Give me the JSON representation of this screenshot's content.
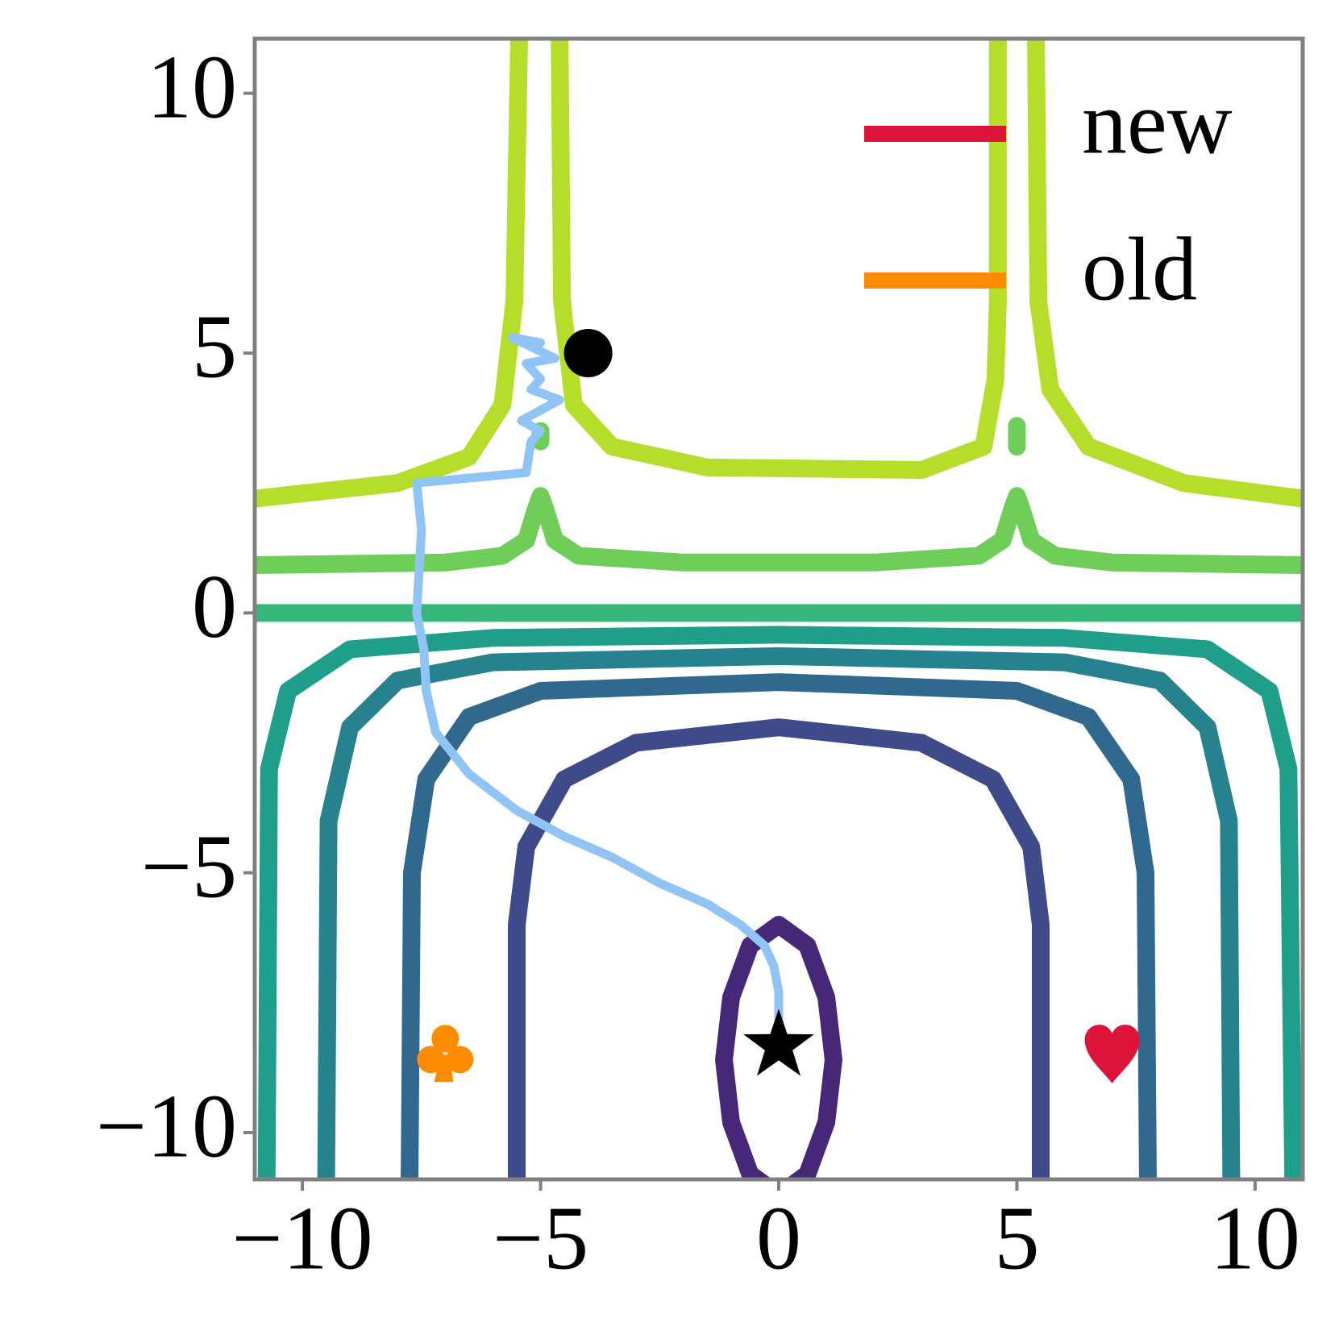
{
  "chart_data": {
    "type": "contour",
    "xlim": [
      -11,
      11
    ],
    "ylim": [
      -10.9,
      11.05
    ],
    "xticks": [
      {
        "value": -10,
        "label": "−10"
      },
      {
        "value": -5,
        "label": "−5"
      },
      0,
      5,
      10
    ],
    "yticks": [
      {
        "value": -10,
        "label": "−10"
      },
      {
        "value": -5,
        "label": "−5"
      },
      0,
      5,
      10
    ],
    "legend": "upper right",
    "series": [
      {
        "name": "new",
        "color": "#dc143c"
      },
      {
        "name": "old",
        "color": "#ff8c00"
      }
    ],
    "contours": [
      {
        "color": "#472878",
        "x": [
          0,
          0.6,
          1.0,
          1.15,
          1.0,
          0.6,
          0,
          -0.6,
          -1.0,
          -1.15,
          -1.0,
          -0.6,
          0
        ],
        "y": [
          -6.0,
          -6.4,
          -7.4,
          -8.6,
          -9.8,
          -10.8,
          -11.2,
          -10.8,
          -9.8,
          -8.6,
          -7.4,
          -6.4,
          -6.0
        ]
      },
      {
        "color": "#3e4a89",
        "x": [
          -5.5,
          -5.5,
          -5.3,
          -4.5,
          -3,
          0,
          3,
          4.5,
          5.3,
          5.5,
          5.5
        ],
        "y": [
          -10.9,
          -6,
          -4.5,
          -3.2,
          -2.5,
          -2.2,
          -2.5,
          -3.2,
          -4.5,
          -6,
          -10.9
        ]
      },
      {
        "color": "#31688e",
        "x": [
          -7.75,
          -7.7,
          -7.4,
          -6.5,
          -5,
          0,
          5,
          6.5,
          7.4,
          7.7,
          7.75
        ],
        "y": [
          -10.9,
          -5,
          -3.2,
          -2,
          -1.5,
          -1.33,
          -1.5,
          -2,
          -3.2,
          -5,
          -10.9
        ]
      },
      {
        "color": "#26828e",
        "x": [
          -9.5,
          -9.45,
          -9,
          -8,
          -6,
          0,
          6,
          8,
          9,
          9.45,
          9.5
        ],
        "y": [
          -10.9,
          -4,
          -2.2,
          -1.3,
          -0.95,
          -0.83,
          -0.95,
          -1.3,
          -2.2,
          -4,
          -10.9
        ]
      },
      {
        "color": "#1f9e89",
        "x": [
          -10.75,
          -10.7,
          -10.3,
          -9,
          -6,
          0,
          6,
          9,
          10.3,
          10.7,
          10.8
        ],
        "y": [
          -10.9,
          -3,
          -1.5,
          -0.7,
          -0.48,
          -0.42,
          -0.48,
          -0.7,
          -1.5,
          -3,
          -10.9
        ]
      },
      {
        "color": "#35b779",
        "x": [
          -11,
          11
        ],
        "y": [
          0,
          0
        ]
      },
      {
        "color": "#6ece58",
        "x": [
          -11,
          -7,
          -5.8,
          -5.3,
          -5.1,
          -5,
          -4.9,
          -4.7,
          -4.2,
          -2,
          2,
          4.2,
          4.7,
          4.9,
          5,
          5.1,
          5.3,
          5.8,
          7,
          11
        ],
        "y": [
          0.92,
          0.97,
          1.1,
          1.4,
          2.0,
          2.25,
          2.0,
          1.4,
          1.1,
          0.97,
          0.97,
          1.1,
          1.4,
          2.0,
          2.25,
          2.0,
          1.4,
          1.1,
          0.97,
          0.92
        ]
      },
      {
        "color": "#6ece58",
        "x": [
          5,
          5
        ],
        "y": [
          3.2,
          3.6
        ]
      },
      {
        "color": "#6ece58",
        "x": [
          -5,
          -5
        ],
        "y": [
          3.3,
          3.5
        ]
      },
      {
        "color": "#b5de2b",
        "x": [
          -11,
          -8,
          -6.5,
          -5.8,
          -5.55,
          -5.45
        ],
        "y": [
          2.2,
          2.5,
          3.0,
          4.0,
          6,
          11.05
        ]
      },
      {
        "color": "#b5de2b",
        "x": [
          -4.6,
          -4.55,
          -4.3,
          -3.5,
          -1.5,
          3,
          4.3,
          4.55,
          4.6,
          4.6
        ],
        "y": [
          11.05,
          6,
          4.0,
          3.2,
          2.8,
          2.75,
          3.2,
          4.5,
          6,
          11.05
        ]
      },
      {
        "color": "#b5de2b",
        "x": [
          5.4,
          5.45,
          5.7,
          6.5,
          8.5,
          11
        ],
        "y": [
          11.05,
          6,
          4.3,
          3.2,
          2.5,
          2.2
        ]
      }
    ],
    "trajectory": {
      "color": "#90c4f5",
      "x": [
        0,
        0,
        -0.1,
        -0.3,
        -0.8,
        -1.5,
        -2.5,
        -3.5,
        -4.5,
        -5.5,
        -6.5,
        -7.2,
        -7.4,
        -7.45,
        -7.6,
        -7.55,
        -7.5,
        -7.6,
        -5.3,
        -5.2,
        -5.0,
        -5.4,
        -4.6,
        -5.2,
        -5.0,
        -5.3,
        -4.7,
        -5.6,
        -5.0
      ],
      "y": [
        -8.3,
        -7.3,
        -6.8,
        -6.4,
        -6.0,
        -5.6,
        -5.2,
        -4.7,
        -4.3,
        -3.8,
        -3.1,
        -2.3,
        -1.5,
        -0.7,
        0,
        0.8,
        1.6,
        2.5,
        2.7,
        3.3,
        3.5,
        3.7,
        4.1,
        4.3,
        4.5,
        4.8,
        4.9,
        5.3,
        5.2
      ]
    },
    "markers": [
      {
        "symbol": "circle",
        "color": "#000000",
        "x": -4,
        "y": 5
      },
      {
        "symbol": "star",
        "color": "#000000",
        "x": 0,
        "y": -8.33
      },
      {
        "symbol": "heart",
        "color": "#dc143c",
        "x": 7,
        "y": -8.4
      },
      {
        "symbol": "club",
        "color": "#ff8c00",
        "x": -7,
        "y": -8.5
      }
    ]
  }
}
